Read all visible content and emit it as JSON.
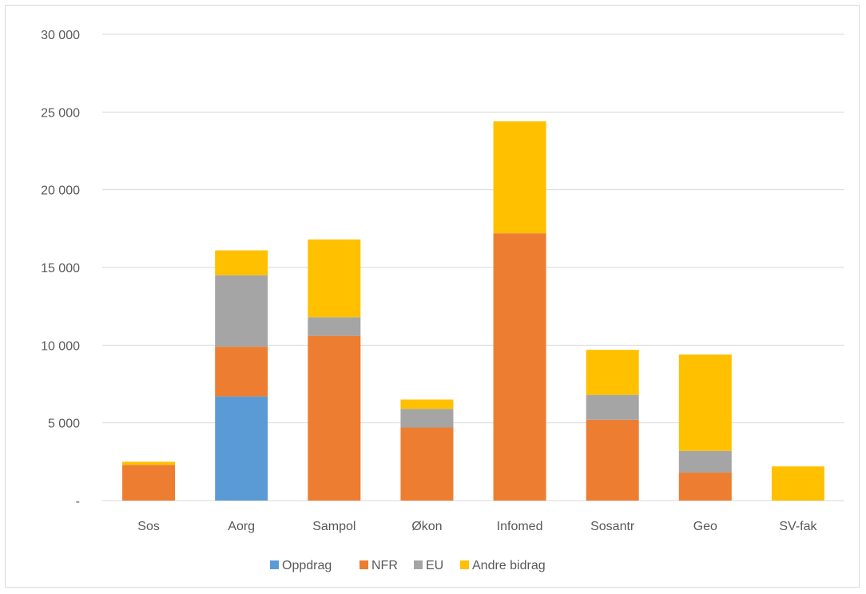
{
  "chart_data": {
    "type": "bar",
    "stacked": true,
    "categories": [
      "Sos",
      "Aorg",
      "Sampol",
      "Økon",
      "Infomed",
      "Sosantr",
      "Geo",
      "SV-fak"
    ],
    "series": [
      {
        "name": "Oppdrag",
        "color": "#5b9bd5",
        "values": [
          0,
          6700,
          0,
          0,
          0,
          0,
          0,
          0
        ]
      },
      {
        "name": "NFR",
        "color": "#ed7d31",
        "values": [
          2300,
          3200,
          10600,
          4700,
          17200,
          5200,
          1800,
          0
        ]
      },
      {
        "name": "EU",
        "color": "#a5a5a5",
        "values": [
          0,
          4600,
          1200,
          1200,
          0,
          1600,
          1400,
          0
        ]
      },
      {
        "name": "Andre bidrag",
        "color": "#ffc000",
        "values": [
          200,
          1600,
          5000,
          600,
          7200,
          2900,
          6200,
          2200
        ]
      }
    ],
    "ylim": [
      0,
      30000
    ],
    "yticks": [
      0,
      5000,
      10000,
      15000,
      20000,
      25000,
      30000
    ],
    "ytick_labels": [
      "-",
      "5 000",
      "10 000",
      "15 000",
      "20 000",
      "25 000",
      "30 000"
    ],
    "grid": true,
    "legend_position": "bottom",
    "gridline_color": "#d9d9d9",
    "axis_color": "#d9d9d9"
  }
}
